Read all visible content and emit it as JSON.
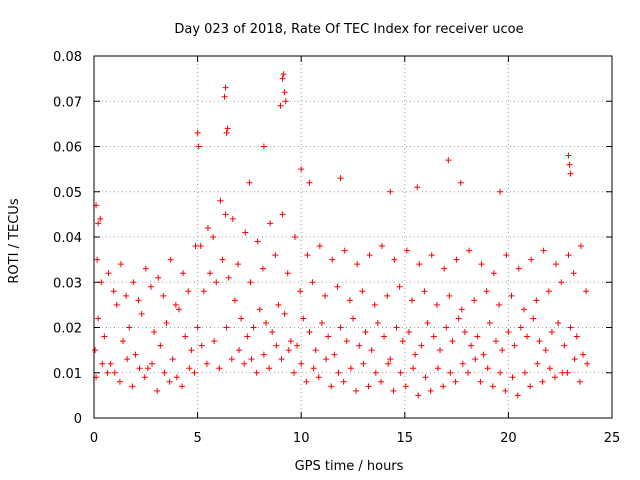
{
  "chart_data": {
    "type": "scatter",
    "title": "Day 023 of 2018, Rate Of TEC Index for receiver ucoe",
    "xlabel": "GPS time / hours",
    "ylabel": "ROTI / TECUs",
    "xlim": [
      0,
      25
    ],
    "ylim": [
      0,
      0.08
    ],
    "x_ticks": [
      0,
      5,
      10,
      15,
      20,
      25
    ],
    "x_tick_labels": [
      "0",
      "5",
      "10",
      "15",
      "20",
      "25"
    ],
    "y_ticks": [
      0,
      0.01,
      0.02,
      0.03,
      0.04,
      0.05,
      0.06,
      0.07,
      0.08
    ],
    "y_tick_labels": [
      "0",
      "0.01",
      "0.02",
      "0.03",
      "0.04",
      "0.05",
      "0.06",
      "0.07",
      "0.08"
    ],
    "grid": true,
    "marker": "plus",
    "color": "#ff0000",
    "series": [
      {
        "x": [
          0.05,
          0.2,
          0.5,
          0.8,
          1.1,
          1.4,
          1.7,
          2.0,
          2.3,
          2.6,
          2.9,
          3.2,
          3.5,
          3.8,
          4.1,
          4.4,
          4.7,
          5.0,
          5.3,
          5.6,
          5.9,
          6.2,
          6.5,
          6.8,
          7.1,
          7.4,
          7.7,
          8.0,
          8.3,
          8.6,
          8.9,
          9.2,
          9.5,
          9.8,
          10.1,
          10.4,
          10.7,
          11.0,
          11.3,
          11.6,
          11.9,
          12.2,
          12.5,
          12.8,
          13.1,
          13.4,
          13.7,
          14.0,
          14.3,
          14.6,
          14.9,
          15.2,
          15.5,
          15.8,
          16.1,
          16.4,
          16.7,
          17.0,
          17.3,
          17.6,
          17.9,
          18.2,
          18.5,
          18.8,
          19.1,
          19.4,
          19.7,
          20.0,
          20.3,
          20.6,
          20.9,
          21.2,
          21.5,
          21.8,
          22.1,
          22.4,
          22.7,
          23.0,
          23.3,
          23.6,
          0.1,
          0.35,
          0.65,
          0.95,
          1.25,
          1.55,
          1.85,
          2.15,
          2.45,
          2.75,
          3.05,
          3.35,
          3.65,
          3.95,
          4.25,
          4.55,
          4.85,
          5.15,
          5.45,
          5.75,
          6.05,
          6.35,
          6.65,
          6.95,
          7.25,
          7.55,
          7.85,
          8.15,
          8.45,
          8.75,
          9.05,
          9.35,
          9.65,
          9.95,
          10.25,
          10.55,
          10.85,
          11.15,
          11.45,
          11.75,
          12.05,
          12.35,
          12.65,
          12.95,
          13.25,
          13.55,
          13.85,
          14.15,
          14.45,
          14.75,
          15.05,
          15.35,
          15.65,
          15.95,
          16.25,
          16.55,
          16.85,
          17.15,
          17.45,
          17.75,
          18.05,
          18.35,
          18.65,
          18.95,
          19.25,
          19.55,
          19.85,
          20.15,
          20.45,
          20.75,
          21.05,
          21.35,
          21.65,
          21.95,
          22.25,
          22.55,
          22.85,
          23.15,
          23.45,
          23.75,
          0.15,
          0.4,
          0.7,
          1.0,
          1.3,
          1.6,
          1.9,
          2.2,
          2.5,
          2.8,
          3.1,
          3.4,
          3.7,
          4.0,
          4.3,
          4.6,
          4.9,
          5.2,
          5.5,
          5.8,
          6.1,
          6.4,
          6.7,
          7.0,
          7.3,
          7.6,
          7.9,
          8.2,
          8.5,
          8.8,
          9.1,
          9.4,
          9.7,
          10.0,
          10.3,
          10.6,
          10.9,
          11.2,
          11.5,
          11.8,
          12.1,
          12.4,
          12.7,
          13.0,
          13.3,
          13.6,
          13.9,
          14.2,
          14.5,
          14.8,
          15.1,
          15.4,
          15.7,
          16.0,
          16.3,
          16.6,
          16.9,
          17.2,
          17.5,
          17.8,
          18.1,
          18.4,
          18.7,
          19.0,
          19.3,
          19.6,
          19.9,
          20.2,
          20.5,
          20.8,
          21.1,
          21.4,
          21.7,
          22.0,
          22.3,
          22.6,
          22.9,
          23.2,
          23.5,
          23.8,
          0.1,
          0.2,
          0.3,
          5.0,
          5.05,
          6.3,
          6.35,
          6.4,
          6.45,
          7.5,
          8.2,
          9.0,
          9.1,
          9.15,
          9.2,
          9.25,
          10.0,
          10.4,
          11.9,
          14.3,
          15.6,
          17.1,
          17.7,
          19.6,
          22.9,
          22.95,
          23.0
        ],
        "y": [
          0.015,
          0.022,
          0.018,
          0.012,
          0.025,
          0.017,
          0.02,
          0.014,
          0.023,
          0.011,
          0.019,
          0.016,
          0.021,
          0.013,
          0.024,
          0.018,
          0.015,
          0.02,
          0.028,
          0.032,
          0.03,
          0.035,
          0.031,
          0.026,
          0.022,
          0.018,
          0.02,
          0.024,
          0.021,
          0.019,
          0.025,
          0.023,
          0.017,
          0.016,
          0.022,
          0.019,
          0.015,
          0.021,
          0.018,
          0.014,
          0.02,
          0.017,
          0.022,
          0.016,
          0.019,
          0.015,
          0.021,
          0.018,
          0.013,
          0.02,
          0.017,
          0.019,
          0.014,
          0.016,
          0.021,
          0.018,
          0.015,
          0.02,
          0.017,
          0.022,
          0.019,
          0.016,
          0.018,
          0.014,
          0.021,
          0.017,
          0.015,
          0.019,
          0.016,
          0.02,
          0.018,
          0.022,
          0.017,
          0.015,
          0.019,
          0.021,
          0.016,
          0.02,
          0.018,
          0.014,
          0.009,
          0.03,
          0.01,
          0.028,
          0.008,
          0.027,
          0.007,
          0.026,
          0.009,
          0.029,
          0.006,
          0.027,
          0.008,
          0.025,
          0.007,
          0.028,
          0.01,
          0.038,
          0.012,
          0.04,
          0.011,
          0.045,
          0.013,
          0.034,
          0.012,
          0.03,
          0.01,
          0.033,
          0.011,
          0.036,
          0.013,
          0.032,
          0.01,
          0.028,
          0.008,
          0.03,
          0.009,
          0.027,
          0.007,
          0.029,
          0.008,
          0.026,
          0.006,
          0.028,
          0.007,
          0.025,
          0.008,
          0.027,
          0.006,
          0.029,
          0.007,
          0.026,
          0.005,
          0.028,
          0.006,
          0.025,
          0.007,
          0.027,
          0.008,
          0.024,
          0.01,
          0.026,
          0.008,
          0.028,
          0.007,
          0.025,
          0.006,
          0.027,
          0.005,
          0.024,
          0.007,
          0.026,
          0.008,
          0.028,
          0.009,
          0.03,
          0.01,
          0.032,
          0.008,
          0.028,
          0.035,
          0.012,
          0.032,
          0.01,
          0.034,
          0.013,
          0.03,
          0.011,
          0.033,
          0.012,
          0.031,
          0.01,
          0.035,
          0.009,
          0.032,
          0.011,
          0.038,
          0.016,
          0.042,
          0.017,
          0.048,
          0.02,
          0.044,
          0.015,
          0.041,
          0.013,
          0.039,
          0.014,
          0.043,
          0.016,
          0.045,
          0.015,
          0.04,
          0.012,
          0.036,
          0.011,
          0.038,
          0.013,
          0.035,
          0.01,
          0.037,
          0.011,
          0.034,
          0.012,
          0.036,
          0.01,
          0.038,
          0.012,
          0.035,
          0.01,
          0.037,
          0.011,
          0.034,
          0.009,
          0.036,
          0.011,
          0.033,
          0.01,
          0.035,
          0.012,
          0.037,
          0.013,
          0.034,
          0.011,
          0.032,
          0.01,
          0.036,
          0.009,
          0.033,
          0.01,
          0.035,
          0.012,
          0.037,
          0.011,
          0.034,
          0.01,
          0.036,
          0.013,
          0.038,
          0.012,
          0.047,
          0.043,
          0.044,
          0.063,
          0.06,
          0.071,
          0.073,
          0.063,
          0.064,
          0.052,
          0.06,
          0.069,
          0.075,
          0.076,
          0.072,
          0.07,
          0.055,
          0.052,
          0.053,
          0.05,
          0.051,
          0.057,
          0.052,
          0.05,
          0.058,
          0.056,
          0.054
        ]
      }
    ]
  }
}
